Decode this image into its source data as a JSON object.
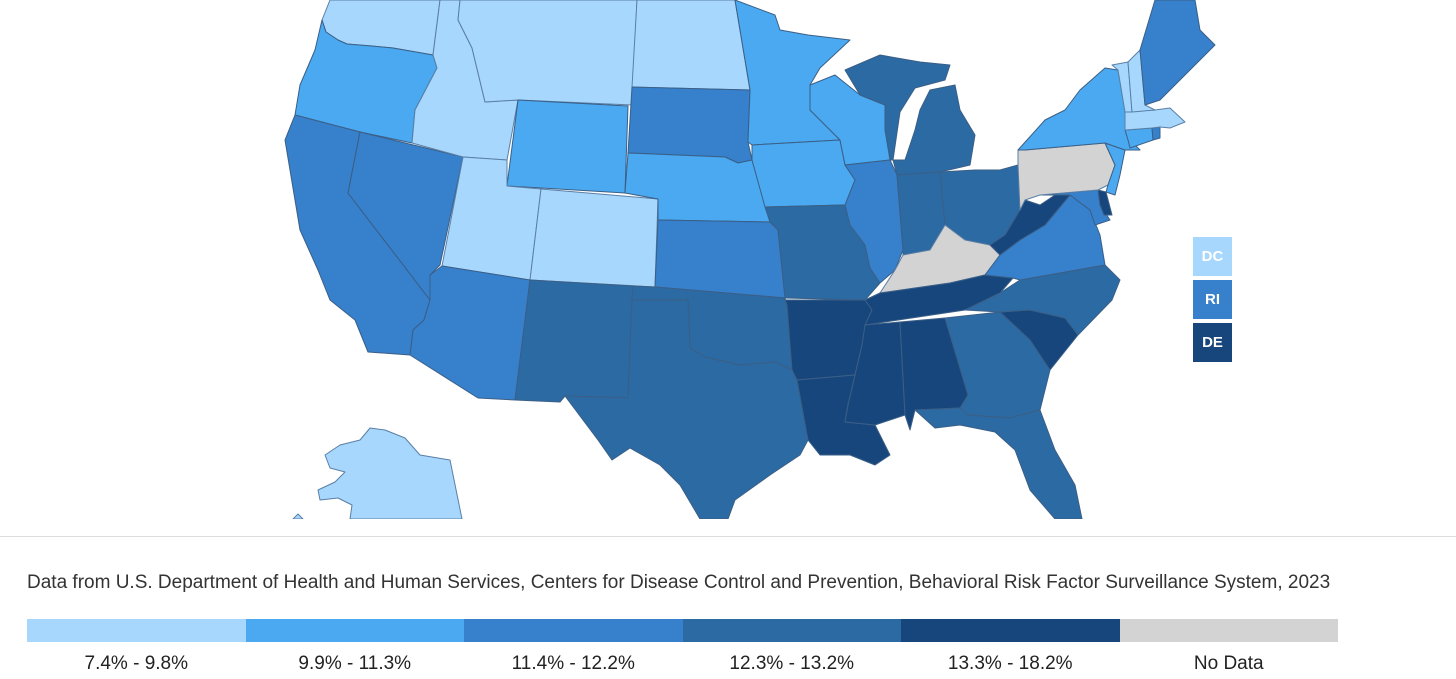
{
  "map": {
    "colors": {
      "bin1": "#a7d7fd",
      "bin2": "#4aa9f0",
      "bin3": "#3680cc",
      "bin4": "#2c6aa3",
      "bin5": "#17467d",
      "nodata": "#d3d3d3"
    },
    "states": {
      "WA": "bin1",
      "OR": "bin2",
      "CA": "bin3",
      "NV": "bin3",
      "ID": "bin1",
      "MT": "bin1",
      "WY": "bin2",
      "UT": "bin1",
      "AZ": "bin3",
      "CO": "bin1",
      "NM": "bin4",
      "ND": "bin1",
      "SD": "bin3",
      "NE": "bin2",
      "KS": "bin3",
      "OK": "bin4",
      "TX": "bin4",
      "MN": "bin2",
      "IA": "bin2",
      "MO": "bin4",
      "AR": "bin5",
      "LA": "bin5",
      "WI": "bin2",
      "IL": "bin3",
      "MI": "bin4",
      "IN": "bin4",
      "OH": "bin4",
      "KY": "nodata",
      "TN": "bin5",
      "MS": "bin5",
      "AL": "bin5",
      "GA": "bin4",
      "FL": "bin4",
      "SC": "bin5",
      "NC": "bin4",
      "VA": "bin3",
      "WV": "bin5",
      "MD": "bin3",
      "DE": "bin5",
      "PA": "nodata",
      "NJ": "bin2",
      "NY": "bin2",
      "CT": "bin2",
      "RI": "bin3",
      "MA": "bin1",
      "VT": "bin1",
      "NH": "bin1",
      "ME": "bin3",
      "AK": "bin1",
      "DC": "bin1"
    },
    "small_states": [
      {
        "label": "DC",
        "bin": "bin1"
      },
      {
        "label": "RI",
        "bin": "bin3"
      },
      {
        "label": "DE",
        "bin": "bin5"
      }
    ]
  },
  "source_note": "Data from U.S. Department of Health and Human Services, Centers for Disease Control and Prevention, Behavioral Risk Factor Surveillance System, 2023",
  "legend": [
    {
      "label": "7.4% - 9.8%",
      "color": "#a7d7fd"
    },
    {
      "label": "9.9% - 11.3%",
      "color": "#4aa9f0"
    },
    {
      "label": "11.4% - 12.2%",
      "color": "#3680cc"
    },
    {
      "label": "12.3% - 13.2%",
      "color": "#2c6aa3"
    },
    {
      "label": "13.3% - 18.2%",
      "color": "#17467d"
    },
    {
      "label": "No Data",
      "color": "#d3d3d3"
    }
  ]
}
